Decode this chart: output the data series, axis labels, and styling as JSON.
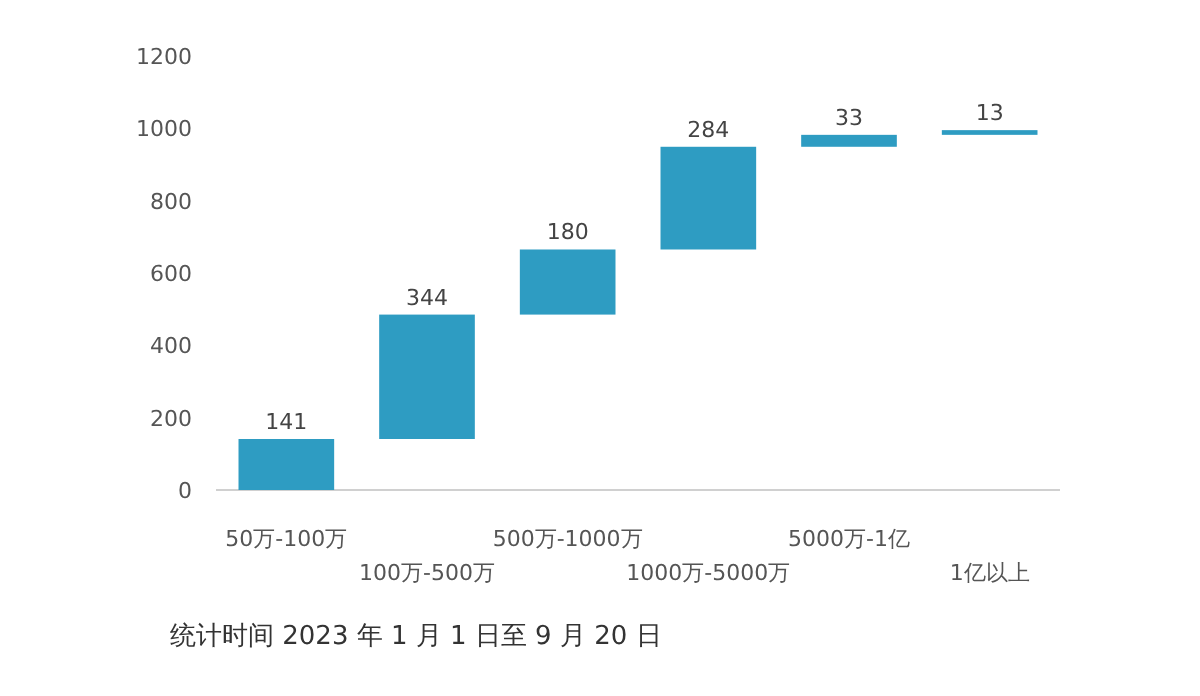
{
  "chart_data": {
    "type": "bar",
    "categories": [
      "50万-100万",
      "100万-500万",
      "500万-1000万",
      "1000万-5000万",
      "5000万-1亿",
      "1亿以上"
    ],
    "values": [
      141,
      344,
      180,
      284,
      33,
      13
    ],
    "base": [
      0,
      141,
      485,
      665,
      949,
      982
    ],
    "color": "#2e9cc2",
    "ylim": [
      0,
      1200
    ],
    "yticks": [
      0,
      200,
      400,
      600,
      800,
      1000,
      1200
    ],
    "data_labels": true,
    "grid": false,
    "annotations": [
      "统计时间 2023 年 1 月 1 日至 9 月 20 日"
    ]
  }
}
